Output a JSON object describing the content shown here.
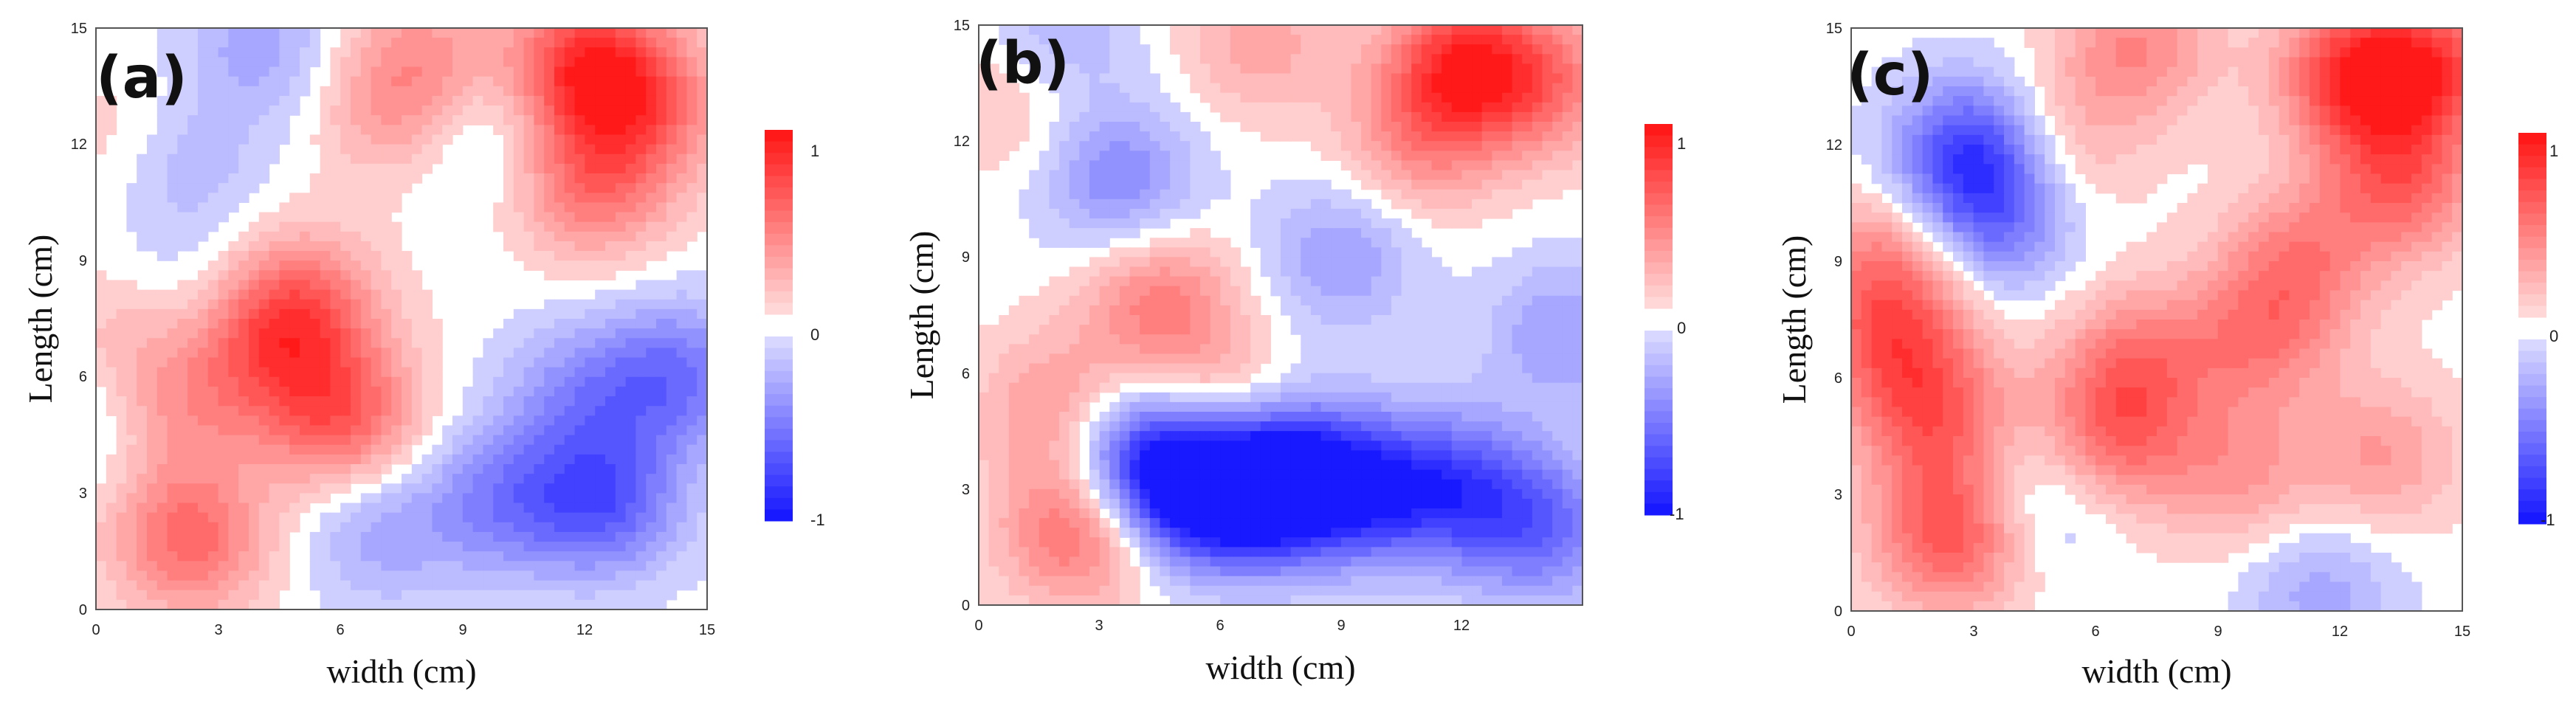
{
  "chart_data": [
    {
      "type": "heatmap",
      "panel_label": "(a)",
      "xlabel": "width (cm)",
      "ylabel": "Length (cm)",
      "xlim": [
        0,
        15
      ],
      "ylim": [
        0,
        15
      ],
      "x_ticks": [
        "0",
        "3",
        "6",
        "9",
        "12",
        "15"
      ],
      "y_ticks": [
        "0",
        "3",
        "6",
        "9",
        "12",
        "15"
      ],
      "colorbar": {
        "range": [
          -1,
          1
        ],
        "ticks": [
          "1",
          "0",
          "-1"
        ],
        "colors": {
          "positive": "#ff1a1a",
          "zero": "#ffffff",
          "negative": "#1a1aff"
        }
      },
      "features": [
        {
          "x": 12.1,
          "y": 14.0,
          "value": 0.85
        },
        {
          "x": 12.2,
          "y": 11.0,
          "value": 0.55
        },
        {
          "x": 13.6,
          "y": 13.0,
          "value": 0.45
        },
        {
          "x": 2.3,
          "y": 1.8,
          "value": 0.6
        },
        {
          "x": 5.0,
          "y": 7.8,
          "value": 0.6
        },
        {
          "x": 6.0,
          "y": 5.0,
          "value": 0.65
        },
        {
          "x": 4.0,
          "y": 6.5,
          "value": 0.4
        },
        {
          "x": 1.8,
          "y": 5.0,
          "value": 0.35
        },
        {
          "x": 0.8,
          "y": 7.0,
          "value": 0.25
        },
        {
          "x": 7.5,
          "y": 13.0,
          "value": 0.4
        },
        {
          "x": 8.2,
          "y": 14.6,
          "value": 0.25
        },
        {
          "x": 1.0,
          "y": 12.0,
          "value": 0.2
        },
        {
          "x": 2.0,
          "y": 11.5,
          "value": -0.3
        },
        {
          "x": 4.0,
          "y": 14.5,
          "value": -0.3
        },
        {
          "x": 9.3,
          "y": 12.3,
          "value": -0.25
        },
        {
          "x": 2.0,
          "y": 8.0,
          "value": -0.15
        },
        {
          "x": 12.5,
          "y": 2.8,
          "value": -0.65
        },
        {
          "x": 10.0,
          "y": 2.8,
          "value": -0.45
        },
        {
          "x": 14.2,
          "y": 6.0,
          "value": -0.55
        },
        {
          "x": 11.8,
          "y": 5.5,
          "value": -0.35
        },
        {
          "x": 7.0,
          "y": 2.0,
          "value": -0.3
        },
        {
          "x": 0.2,
          "y": 5.0,
          "value": -0.25
        }
      ]
    },
    {
      "type": "heatmap",
      "panel_label": "(b)",
      "xlabel": "width (cm)",
      "ylabel": "Length (cm)",
      "xlim": [
        0,
        15
      ],
      "ylim": [
        0,
        15
      ],
      "x_ticks": [
        "0",
        "3",
        "6",
        "9",
        "12"
      ],
      "y_ticks": [
        "0",
        "3",
        "6",
        "9",
        "12",
        "15"
      ],
      "colorbar": {
        "range": [
          -1,
          1
        ],
        "ticks": [
          "1",
          "0",
          "-1"
        ],
        "colors": {
          "positive": "#ff1a1a",
          "zero": "#ffffff",
          "negative": "#1a1aff"
        }
      },
      "features": [
        {
          "x": 5.0,
          "y": 3.2,
          "value": -0.95
        },
        {
          "x": 6.5,
          "y": 3.0,
          "value": -0.8
        },
        {
          "x": 8.0,
          "y": 3.2,
          "value": -0.95
        },
        {
          "x": 10.0,
          "y": 3.0,
          "value": -0.6
        },
        {
          "x": 12.0,
          "y": 3.0,
          "value": -0.6
        },
        {
          "x": 14.0,
          "y": 2.0,
          "value": -0.55
        },
        {
          "x": 3.5,
          "y": 4.0,
          "value": -0.5
        },
        {
          "x": 3.5,
          "y": 11.0,
          "value": -0.45
        },
        {
          "x": 9.0,
          "y": 9.0,
          "value": -0.35
        },
        {
          "x": 14.5,
          "y": 7.0,
          "value": -0.35
        },
        {
          "x": 2.0,
          "y": 14.7,
          "value": -0.25
        },
        {
          "x": 12.0,
          "y": 14.0,
          "value": 0.8
        },
        {
          "x": 14.0,
          "y": 13.5,
          "value": 0.5
        },
        {
          "x": 11.0,
          "y": 12.0,
          "value": 0.4
        },
        {
          "x": 2.5,
          "y": 2.0,
          "value": 0.65
        },
        {
          "x": 4.5,
          "y": 7.8,
          "value": 0.5
        },
        {
          "x": 2.0,
          "y": 5.0,
          "value": 0.45
        },
        {
          "x": 6.0,
          "y": 5.1,
          "value": 0.35
        },
        {
          "x": 7.0,
          "y": 14.5,
          "value": 0.3
        },
        {
          "x": 0.8,
          "y": 13.0,
          "value": 0.2
        }
      ]
    },
    {
      "type": "heatmap",
      "panel_label": "(c)",
      "xlabel": "width (cm)",
      "ylabel": "Length (cm)",
      "xlim": [
        0,
        15
      ],
      "ylim": [
        0,
        15
      ],
      "x_ticks": [
        "0",
        "3",
        "6",
        "9",
        "12",
        "15"
      ],
      "y_ticks": [
        "0",
        "3",
        "6",
        "9",
        "12",
        "15"
      ],
      "colorbar": {
        "range": [
          -1,
          1
        ],
        "ticks": [
          "1",
          "0",
          "-1"
        ],
        "colors": {
          "positive": "#ff1a1a",
          "zero": "#ffffff",
          "negative": "#1a1aff"
        }
      },
      "features": [
        {
          "x": 12.5,
          "y": 13.8,
          "value": 0.9
        },
        {
          "x": 13.5,
          "y": 11.0,
          "value": 0.6
        },
        {
          "x": 14.5,
          "y": 14.0,
          "value": 0.6
        },
        {
          "x": 11.0,
          "y": 9.0,
          "value": 0.45
        },
        {
          "x": 2.5,
          "y": 2.0,
          "value": 0.75
        },
        {
          "x": 2.0,
          "y": 5.0,
          "value": 0.6
        },
        {
          "x": 1.0,
          "y": 7.0,
          "value": 0.55
        },
        {
          "x": 1.0,
          "y": 9.0,
          "value": 0.45
        },
        {
          "x": 6.5,
          "y": 4.5,
          "value": 0.55
        },
        {
          "x": 7.0,
          "y": 6.5,
          "value": 0.45
        },
        {
          "x": 10.0,
          "y": 7.0,
          "value": 0.45
        },
        {
          "x": 7.0,
          "y": 14.5,
          "value": 0.45
        },
        {
          "x": 9.5,
          "y": 3.5,
          "value": 0.35
        },
        {
          "x": 13.0,
          "y": 4.0,
          "value": 0.35
        },
        {
          "x": 5.0,
          "y": 12.0,
          "value": 0.3
        },
        {
          "x": 3.0,
          "y": 11.8,
          "value": -0.8
        },
        {
          "x": 3.5,
          "y": 10.0,
          "value": -0.5
        },
        {
          "x": 4.5,
          "y": 2.8,
          "value": -0.3
        },
        {
          "x": 11.5,
          "y": 0.5,
          "value": -0.3
        }
      ]
    }
  ]
}
